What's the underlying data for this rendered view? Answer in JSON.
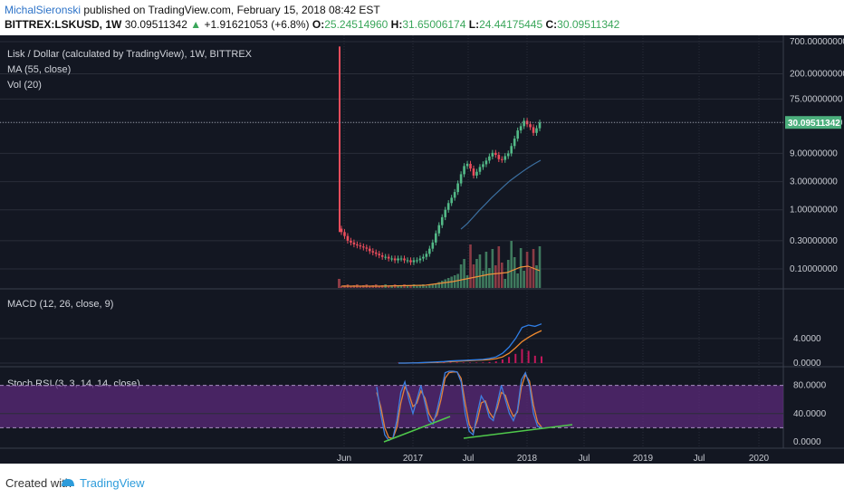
{
  "header": {
    "author": "MichalSieronski",
    "published_text": "published on TradingView.com, February 15, 2018 08:42 EST",
    "symbol": "BITTREX:LSKUSD, 1W",
    "last": "30.09511342",
    "change_arrow": "▲",
    "change": "+1.91621053 (+6.8%)",
    "open_label": "O:",
    "open": "25.24514960",
    "high_label": "H:",
    "high": "31.65006174",
    "low_label": "L:",
    "low": "24.44175445",
    "close_label": "C:",
    "close": "30.09511342"
  },
  "colors": {
    "background": "#131722",
    "grid": "#2a2e39",
    "axis_text": "#c8cbd2",
    "up_candle": "#53b987",
    "down_candle": "#eb4d5c",
    "ma_line": "#3b6fa0",
    "volume_ma": "#f0903c",
    "macd_line": "#2f7ee6",
    "signal_line": "#f08a2e",
    "histogram": "#c2185b",
    "stoch_k": "#3f7fe0",
    "stoch_d": "#e2803a",
    "stoch_band": "#5b2a7a",
    "trendline": "#4fc84b",
    "price_label_bg": "#4caf7d"
  },
  "footer": {
    "created_with": "Created with",
    "brand": "TradingView"
  },
  "chart_data": [
    {
      "pane": "price",
      "type": "candlestick",
      "legend": [
        "Lisk / Dollar (calculated by TradingView), 1W, BITTREX",
        "MA (55, close)",
        "Vol (20)"
      ],
      "y_scale": "log",
      "y_ticks": [
        "700.00000000",
        "200.00000000",
        "75.00000000",
        "30.00000000",
        "9.00000000",
        "3.00000000",
        "1.00000000",
        "0.30000000",
        "0.10000000"
      ],
      "last_price_label": "30.09511342",
      "x_ticks": [
        "Jun",
        "2017",
        "Jul",
        "2018",
        "Jul",
        "2019",
        "Jul",
        "2020"
      ],
      "weekly_close_series": [
        0.42,
        0.36,
        0.3,
        0.28,
        0.26,
        0.25,
        0.24,
        0.23,
        0.22,
        0.2,
        0.19,
        0.18,
        0.17,
        0.16,
        0.16,
        0.15,
        0.15,
        0.14,
        0.15,
        0.15,
        0.14,
        0.14,
        0.13,
        0.14,
        0.14,
        0.15,
        0.16,
        0.18,
        0.22,
        0.28,
        0.4,
        0.55,
        0.75,
        1.0,
        1.3,
        1.6,
        2.0,
        2.8,
        4.0,
        5.5,
        6.0,
        5.0,
        3.8,
        4.4,
        5.3,
        5.9,
        6.8,
        8.0,
        9.2,
        8.5,
        7.2,
        7.0,
        8.1,
        9.0,
        12.0,
        16.0,
        22.0,
        26.0,
        32.0,
        28.0,
        25.0,
        20.0,
        24.0,
        30.0
      ],
      "spike_high": 580,
      "ma_55": [
        0.47,
        0.58,
        0.75,
        0.98,
        1.25,
        1.6,
        2.0,
        2.5,
        3.1,
        3.7,
        4.4,
        5.2,
        6.0,
        6.9
      ],
      "volume_ma_note": "orange volume MA line"
    },
    {
      "pane": "macd",
      "legend": "MACD (12, 26, close, 9)",
      "y_ticks": [
        "4.0000",
        "0.0000"
      ],
      "macd": [
        0,
        0,
        0.02,
        0.05,
        0.1,
        0.15,
        0.2,
        0.25,
        0.35,
        0.4,
        0.45,
        0.5,
        0.55,
        0.6,
        0.75,
        1.0,
        1.6,
        2.6,
        4.0,
        5.8,
        6.2,
        6.0,
        6.4
      ],
      "signal": [
        0,
        0,
        0.01,
        0.03,
        0.06,
        0.1,
        0.14,
        0.19,
        0.25,
        0.3,
        0.36,
        0.41,
        0.46,
        0.5,
        0.58,
        0.72,
        1.0,
        1.6,
        2.5,
        3.5,
        4.2,
        4.8,
        5.3
      ],
      "histogram": [
        0,
        0,
        0,
        0.02,
        0.04,
        0.05,
        0.06,
        0.06,
        0.1,
        0.1,
        0.09,
        0.09,
        0.09,
        0.1,
        0.17,
        0.28,
        0.6,
        1.0,
        1.5,
        2.3,
        2.0,
        1.2,
        1.1
      ]
    },
    {
      "pane": "stoch_rsi",
      "legend": "Stoch RSI (3, 3, 14, 14, close)",
      "y_ticks": [
        "80.0000",
        "40.0000",
        "0.0000"
      ],
      "band": [
        20,
        80
      ],
      "k": [
        78,
        40,
        10,
        2,
        5,
        30,
        70,
        85,
        60,
        40,
        60,
        80,
        55,
        30,
        25,
        45,
        70,
        98,
        100,
        100,
        99,
        85,
        40,
        15,
        10,
        40,
        65,
        55,
        35,
        30,
        55,
        80,
        60,
        40,
        30,
        45,
        88,
        98,
        80,
        40,
        22,
        20
      ],
      "d": [
        70,
        50,
        20,
        6,
        5,
        20,
        55,
        78,
        68,
        50,
        55,
        72,
        62,
        40,
        30,
        38,
        60,
        90,
        98,
        99,
        99,
        90,
        55,
        25,
        14,
        30,
        55,
        58,
        42,
        34,
        48,
        70,
        66,
        48,
        36,
        42,
        78,
        95,
        86,
        52,
        28,
        21
      ]
    }
  ]
}
